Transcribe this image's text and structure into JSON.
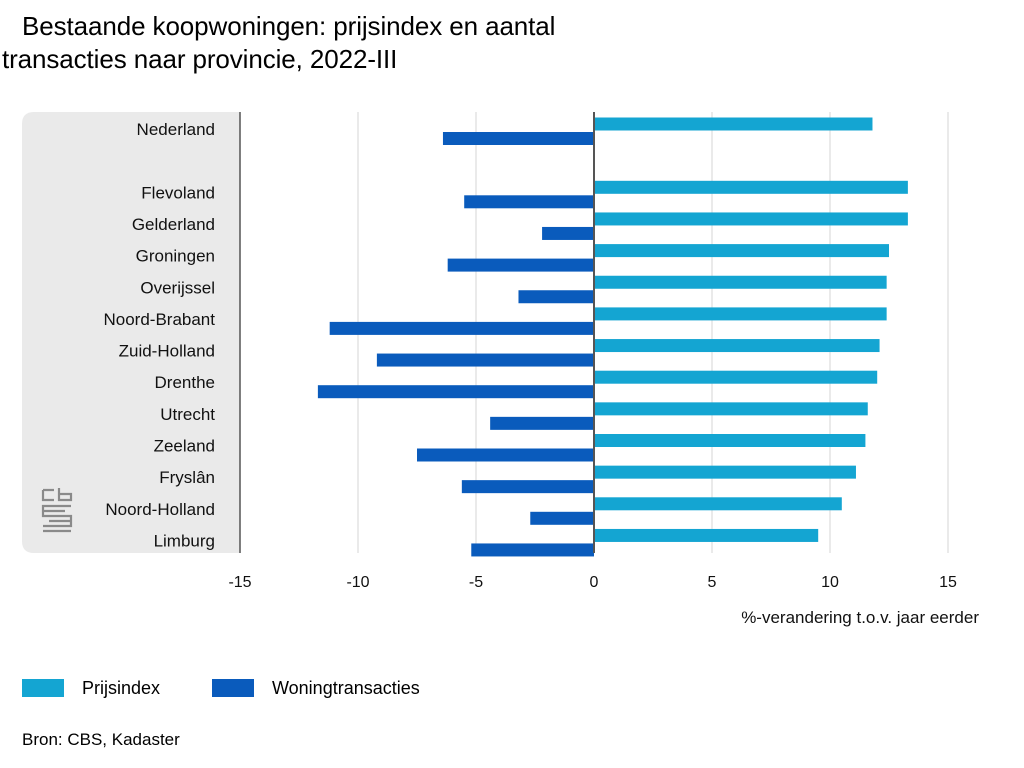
{
  "title_line1": "Bestaande koopwoningen: prijsindex en aantal",
  "title_line2": "transacties naar provincie, 2022-III",
  "source": "Bron: CBS, Kadaster",
  "colors": {
    "prijsindex": "#14a5d2",
    "woningtransacties": "#0a5bbc",
    "panel": "#eaeaea",
    "grid": "#d6d6d6",
    "axis": "#555555"
  },
  "chart_data": {
    "type": "bar",
    "orientation": "horizontal",
    "categories": [
      "Nederland",
      "",
      "Flevoland",
      "Gelderland",
      "Groningen",
      "Overijssel",
      "Noord-Brabant",
      "Zuid-Holland",
      "Drenthe",
      "Utrecht",
      "Zeeland",
      "Fryslân",
      "Noord-Holland",
      "Limburg"
    ],
    "series": [
      {
        "name": "Prijsindex",
        "values": [
          11.8,
          null,
          13.3,
          13.3,
          12.5,
          12.4,
          12.4,
          12.1,
          12.0,
          11.6,
          11.5,
          11.1,
          10.5,
          9.5
        ]
      },
      {
        "name": "Woningtransacties",
        "values": [
          -6.4,
          null,
          -5.5,
          -2.2,
          -6.2,
          -3.2,
          -11.2,
          -9.2,
          -11.7,
          -4.4,
          -7.5,
          -5.6,
          -2.7,
          -5.2
        ]
      }
    ],
    "xlim": [
      -15,
      15
    ],
    "xticks": [
      -15,
      -10,
      -5,
      0,
      5,
      10,
      15
    ],
    "xtick_labels": [
      "-15",
      "-10",
      "-5",
      "0",
      "5",
      "10",
      "15"
    ],
    "xlabel": "%-verandering t.o.v. jaar eerder",
    "ylabel": "",
    "grid": true,
    "legend_position": "bottom-left"
  }
}
